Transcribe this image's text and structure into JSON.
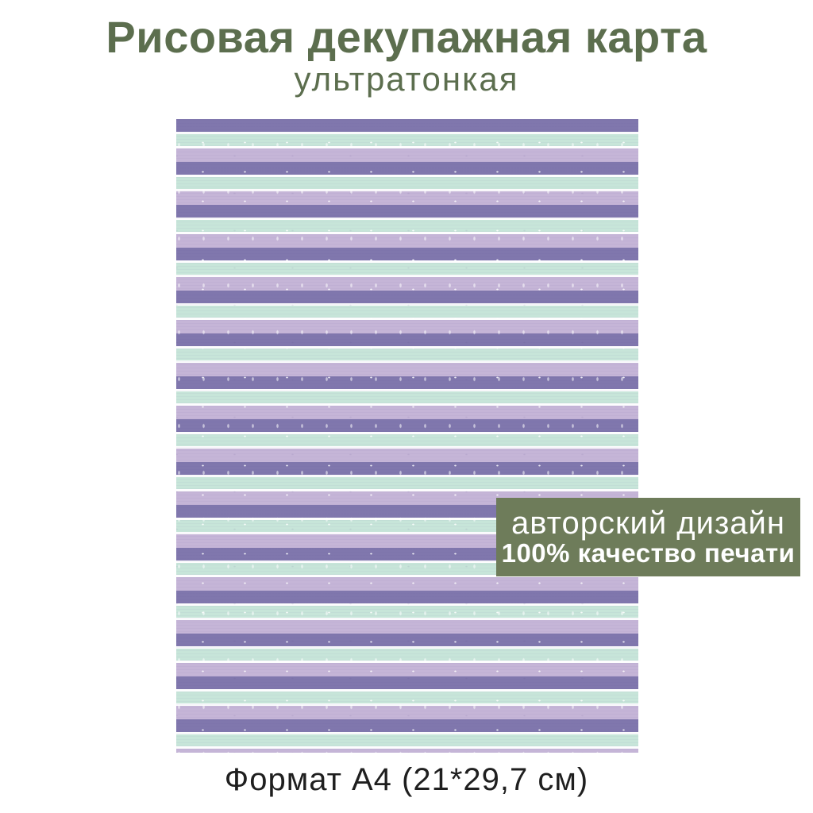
{
  "header": {
    "title": "Рисовая декупажная карта",
    "subtitle": "ультратонкая"
  },
  "badge": {
    "line1": "авторский дизайн",
    "line2": "100% качество печати",
    "bg_color": "#6e7c5a",
    "text_color": "#ffffff"
  },
  "footer": {
    "format_text": "Формат А4 (21*29,7 см)"
  },
  "artwork": {
    "kind": "striped-pattern-a4-preview",
    "colors": {
      "purple": "#8077ad",
      "lavender": "#c5b5d7",
      "mint": "#c7e5d9",
      "gap": "#fdfdfe"
    },
    "stripe_unit": [
      {
        "color": "purple",
        "height": 16
      },
      {
        "color": "gap",
        "height": 3
      },
      {
        "color": "mint",
        "height": 15
      },
      {
        "color": "gap",
        "height": 3
      },
      {
        "color": "lavender",
        "height": 17
      }
    ],
    "repeat": 15
  },
  "theme": {
    "title_color": "#5c6e4e",
    "text_color": "#1f1f1f",
    "background": "#ffffff"
  }
}
